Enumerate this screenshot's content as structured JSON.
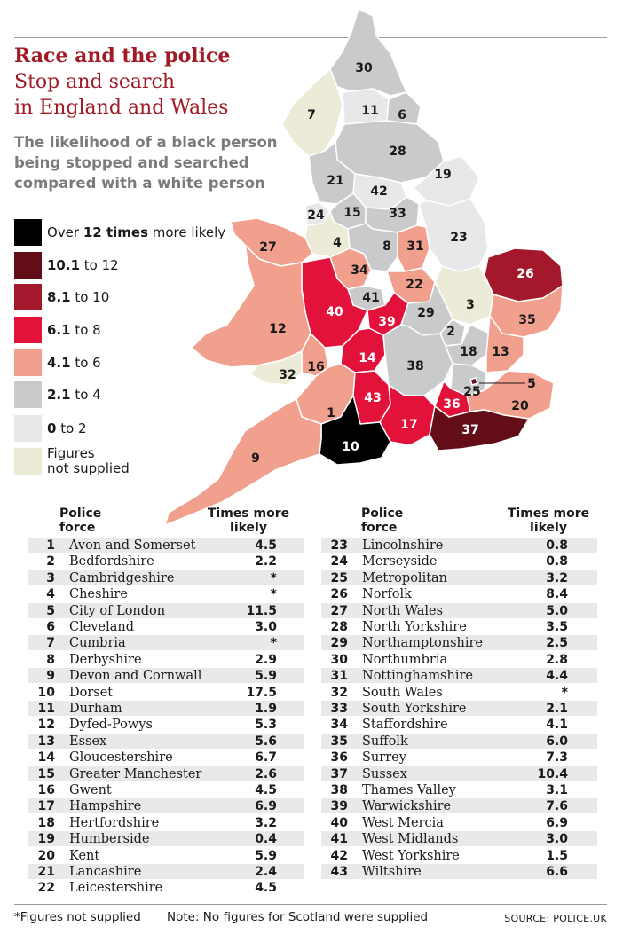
{
  "header": {
    "title": "Race and the police",
    "subtitle_line1": "Stop and search",
    "subtitle_line2": "in England and Wales",
    "description_line1": "The likelihood of a black person",
    "description_line2": "being stopped and searched",
    "description_line3": "compared with a white person"
  },
  "legend": [
    {
      "color": "#000000",
      "bold": "12 times",
      "pre": "Over ",
      "post": " more likely"
    },
    {
      "color": "#620d18",
      "bold": "10.1",
      "pre": "",
      "post": " to 12"
    },
    {
      "color": "#a4182b",
      "bold": "8.1",
      "pre": "",
      "post": " to 10"
    },
    {
      "color": "#e2123a",
      "bold": "6.1",
      "pre": "",
      "post": " to 8"
    },
    {
      "color": "#f0a08d",
      "bold": "4.1",
      "pre": "",
      "post": " to 6"
    },
    {
      "color": "#c9cacb",
      "bold": "2.1",
      "pre": "",
      "post": " to 4"
    },
    {
      "color": "#e8e8ea",
      "bold": "0",
      "pre": "",
      "post": " to 2"
    },
    {
      "color": "#ecebd7",
      "bold": "",
      "pre": "Figures not supplied",
      "post": ""
    }
  ],
  "table_header": {
    "force_line1": "Police",
    "force_line2": "force",
    "value_line1": "Times more",
    "value_line2": "likely"
  },
  "chart_data": {
    "type": "table",
    "title": "Race and the police",
    "columns": [
      "#",
      "Police force",
      "Times more likely"
    ],
    "rows": [
      [
        1,
        "Avon and Somerset",
        "4.5"
      ],
      [
        2,
        "Bedfordshire",
        "2.2"
      ],
      [
        3,
        "Cambridgeshire",
        "*"
      ],
      [
        4,
        "Cheshire",
        "*"
      ],
      [
        5,
        "City of London",
        "11.5"
      ],
      [
        6,
        "Cleveland",
        "3.0"
      ],
      [
        7,
        "Cumbria",
        "*"
      ],
      [
        8,
        "Derbyshire",
        "2.9"
      ],
      [
        9,
        "Devon and Cornwall",
        "5.9"
      ],
      [
        10,
        "Dorset",
        "17.5"
      ],
      [
        11,
        "Durham",
        "1.9"
      ],
      [
        12,
        "Dyfed-Powys",
        "5.3"
      ],
      [
        13,
        "Essex",
        "5.6"
      ],
      [
        14,
        "Gloucestershire",
        "6.7"
      ],
      [
        15,
        "Greater Manchester",
        "2.6"
      ],
      [
        16,
        "Gwent",
        "4.5"
      ],
      [
        17,
        "Hampshire",
        "6.9"
      ],
      [
        18,
        "Hertfordshire",
        "3.2"
      ],
      [
        19,
        "Humberside",
        "0.4"
      ],
      [
        20,
        "Kent",
        "5.9"
      ],
      [
        21,
        "Lancashire",
        "2.4"
      ],
      [
        22,
        "Leicestershire",
        "4.5"
      ],
      [
        23,
        "Lincolnshire",
        "0.8"
      ],
      [
        24,
        "Merseyside",
        "0.8"
      ],
      [
        25,
        "Metropolitan",
        "3.2"
      ],
      [
        26,
        "Norfolk",
        "8.4"
      ],
      [
        27,
        "North Wales",
        "5.0"
      ],
      [
        28,
        "North Yorkshire",
        "3.5"
      ],
      [
        29,
        "Northamptonshire",
        "2.5"
      ],
      [
        30,
        "Northumbria",
        "2.8"
      ],
      [
        31,
        "Nottinghamshire",
        "4.4"
      ],
      [
        32,
        "South Wales",
        "*"
      ],
      [
        33,
        "South Yorkshire",
        "2.1"
      ],
      [
        34,
        "Staffordshire",
        "4.1"
      ],
      [
        35,
        "Suffolk",
        "6.0"
      ],
      [
        36,
        "Surrey",
        "7.3"
      ],
      [
        37,
        "Sussex",
        "10.4"
      ],
      [
        38,
        "Thames Valley",
        "3.1"
      ],
      [
        39,
        "Warwickshire",
        "7.6"
      ],
      [
        40,
        "West Mercia",
        "6.9"
      ],
      [
        41,
        "West Midlands",
        "3.0"
      ],
      [
        42,
        "West Yorkshire",
        "1.5"
      ],
      [
        43,
        "Wiltshire",
        "6.6"
      ]
    ]
  },
  "footer": {
    "note1": "*Figures not supplied",
    "note2": "Note: No figures for Scotland were supplied",
    "source": "SOURCE: POLICE.UK"
  }
}
